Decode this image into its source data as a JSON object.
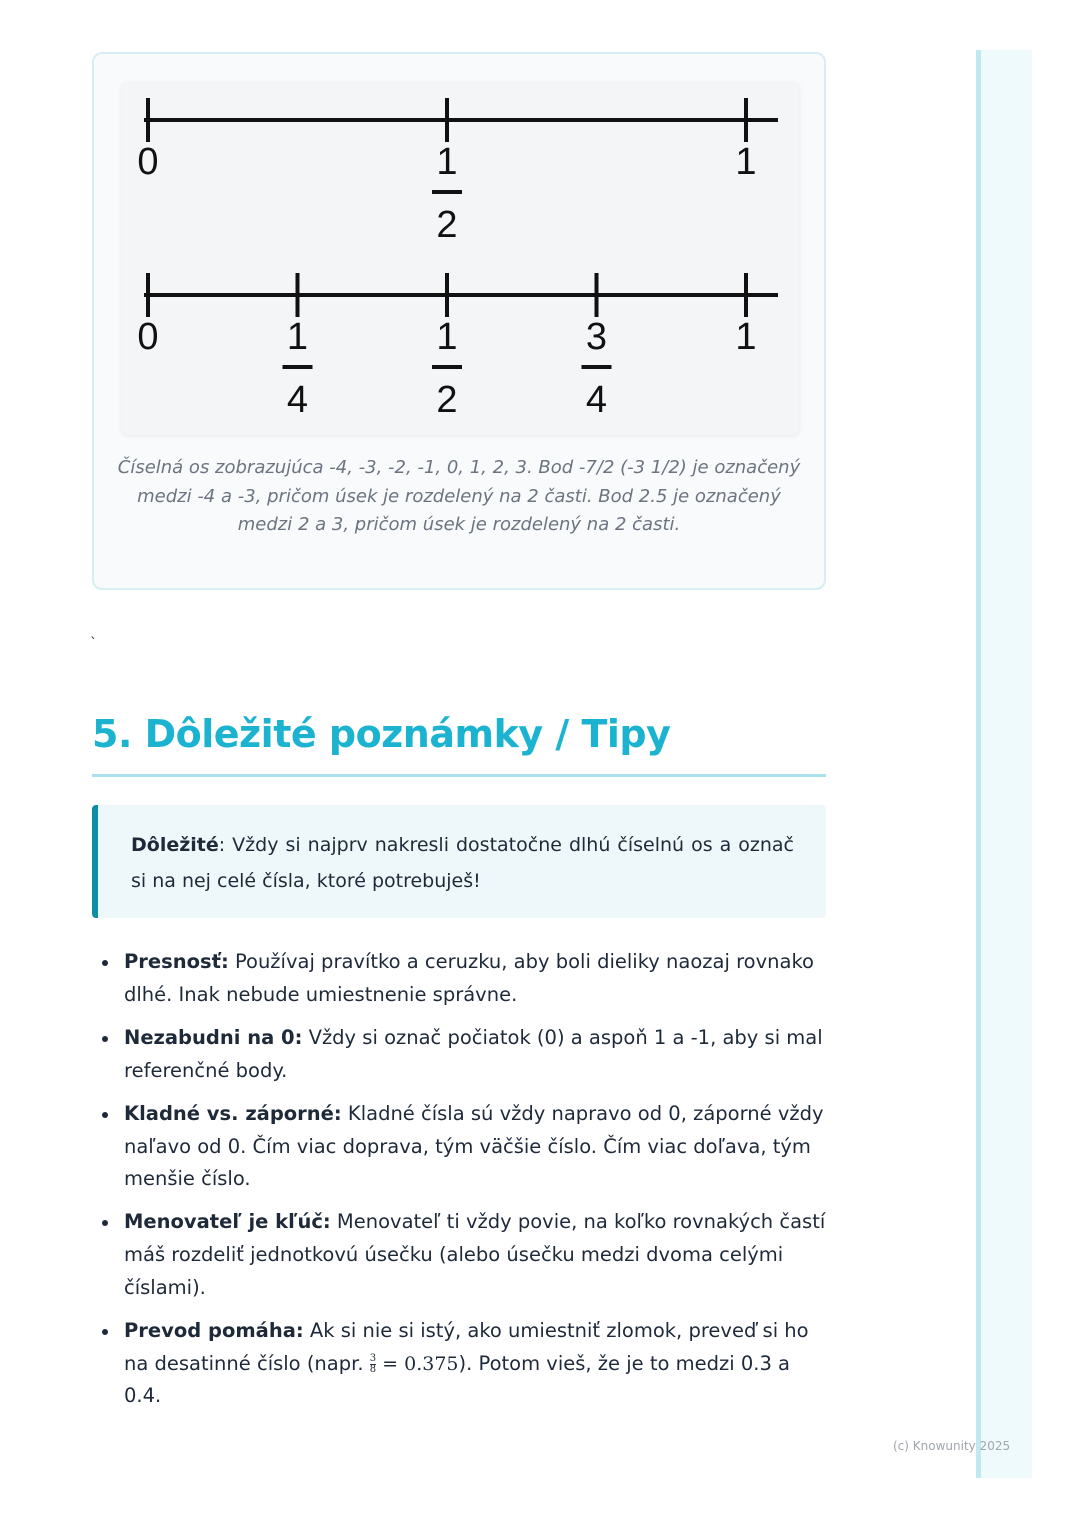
{
  "figure": {
    "line1": {
      "labels": [
        {
          "num": "0"
        },
        {
          "num": "1",
          "den": "2"
        },
        {
          "num": "1"
        }
      ]
    },
    "line2": {
      "labels": [
        {
          "num": "0"
        },
        {
          "num": "1",
          "den": "4"
        },
        {
          "num": "1",
          "den": "2"
        },
        {
          "num": "3",
          "den": "4"
        },
        {
          "num": "1"
        }
      ]
    },
    "caption": "Číselná os zobrazujúca -4, -3, -2, -1, 0, 1, 2, 3. Bod -7/2 (-3 1/2) je označený medzi -4 a -3, pričom úsek je rozdelený na 2 časti. Bod 2.5 je označený medzi 2 a 3, pričom úsek je rozdelený na 2 časti."
  },
  "stray_mark": "`",
  "section": {
    "title": "5. Dôležité poznámky / Tipy"
  },
  "callout": {
    "bold": "Dôležité",
    "text": ": Vždy si najprv nakresli dostatočne dlhú číselnú os a označ si na nej celé čísla, ktoré potrebuješ!"
  },
  "tips": [
    {
      "bold": "Presnosť:",
      "text": " Používaj pravítko a ceruzku, aby boli dieliky naozaj rovnako dlhé. Inak nebude umiestnenie správne."
    },
    {
      "bold": "Nezabudni na 0:",
      "text": " Vždy si označ počiatok (0) a aspoň 1 a -1, aby si mal referenčné body."
    },
    {
      "bold": "Kladné vs. záporné:",
      "text": " Kladné čísla sú vždy napravo od 0, záporné vždy naľavo od 0. Čím viac doprava, tým väčšie číslo. Čím viac doľava, tým menšie číslo."
    },
    {
      "bold": "Menovateľ je kľúč:",
      "text": " Menovateľ ti vždy povie, na koľko rovnakých častí máš rozdeliť jednotkovú úsečku (alebo úsečku medzi dvoma celými číslami)."
    },
    {
      "bold": "Prevod pomáha:",
      "text": " Ak si nie si istý, ako umiestniť zlomok, preveď si ho na desatinné číslo (napr. ",
      "frac_num": "3",
      "frac_den": "8",
      "math": " = 0.375",
      "tail": "). Potom vieš, že je to medzi 0.3 a 0.4."
    }
  ],
  "footer": "(c) Knowunity 2025"
}
